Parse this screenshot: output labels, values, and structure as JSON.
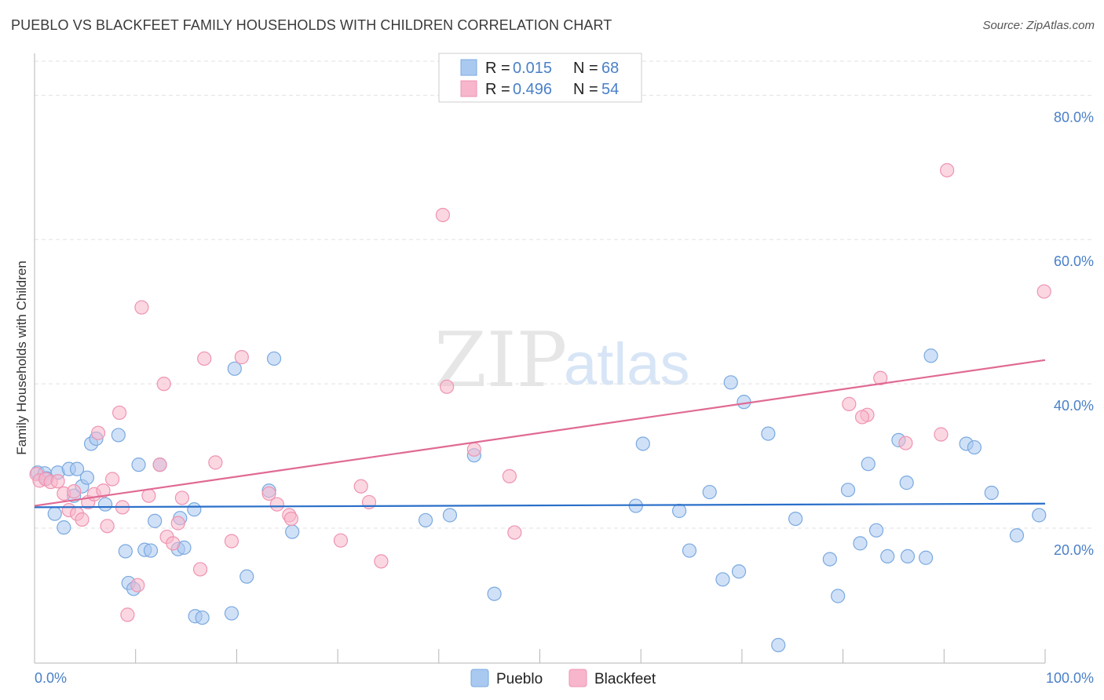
{
  "title": "PUEBLO VS BLACKFEET FAMILY HOUSEHOLDS WITH CHILDREN CORRELATION CHART",
  "source": "Source: ZipAtlas.com",
  "watermark": {
    "zip": "ZIP",
    "atlas": "atlas"
  },
  "legend": {
    "rows": [
      {
        "r_label": "R =",
        "r_value": "0.015",
        "n_label": "N =",
        "n_value": "68"
      },
      {
        "r_label": "R =",
        "r_value": "0.496",
        "n_label": "N =",
        "n_value": "54"
      }
    ]
  },
  "bottom_legend": {
    "pueblo": "Pueblo",
    "blackfeet": "Blackfeet"
  },
  "colors": {
    "pueblo_fill": "#a9c9f0",
    "pueblo_stroke": "#7aa9e0",
    "pueblo_line": "#2a6fc9",
    "blackfeet_fill": "#f7b6cb",
    "blackfeet_stroke": "#ef93b1",
    "blackfeet_line": "#e06a94",
    "tick_text": "#4a80c8"
  },
  "chart_data": {
    "type": "scatter",
    "title": "PUEBLO VS BLACKFEET FAMILY HOUSEHOLDS WITH CHILDREN CORRELATION CHART",
    "xlabel": "",
    "ylabel": "Family Households with Children",
    "xlim": [
      0,
      100
    ],
    "ylim": [
      1.3,
      85.8
    ],
    "x_tick_labels": [
      "0.0%",
      "100.0%"
    ],
    "y_ticks": [
      20,
      40,
      60,
      80
    ],
    "y_tick_labels": [
      "20.0%",
      "40.0%",
      "60.0%",
      "80.0%"
    ],
    "grid": true,
    "series": [
      {
        "name": "Pueblo",
        "R": 0.015,
        "N": 68,
        "trend": [
          [
            0,
            22.9
          ],
          [
            100,
            23.4
          ]
        ],
        "points": [
          [
            0.3,
            27.7
          ],
          [
            1.0,
            27.6
          ],
          [
            1.2,
            26.9
          ],
          [
            2.0,
            22.0
          ],
          [
            2.3,
            27.7
          ],
          [
            2.9,
            20.1
          ],
          [
            3.4,
            28.2
          ],
          [
            3.9,
            24.5
          ],
          [
            4.2,
            28.2
          ],
          [
            4.7,
            25.8
          ],
          [
            5.2,
            27.0
          ],
          [
            5.6,
            31.7
          ],
          [
            6.1,
            32.4
          ],
          [
            7.0,
            23.3
          ],
          [
            8.3,
            32.9
          ],
          [
            9.0,
            16.8
          ],
          [
            9.3,
            12.4
          ],
          [
            9.8,
            11.6
          ],
          [
            10.3,
            28.8
          ],
          [
            10.9,
            17.0
          ],
          [
            11.5,
            16.9
          ],
          [
            11.9,
            21.0
          ],
          [
            12.4,
            28.8
          ],
          [
            14.2,
            17.1
          ],
          [
            14.4,
            21.4
          ],
          [
            14.8,
            17.3
          ],
          [
            15.8,
            22.6
          ],
          [
            15.9,
            7.8
          ],
          [
            16.6,
            7.6
          ],
          [
            19.5,
            8.2
          ],
          [
            19.8,
            42.1
          ],
          [
            21.0,
            13.3
          ],
          [
            23.2,
            25.2
          ],
          [
            23.7,
            43.5
          ],
          [
            25.5,
            19.5
          ],
          [
            38.7,
            21.1
          ],
          [
            41.1,
            21.8
          ],
          [
            43.5,
            30.1
          ],
          [
            45.5,
            10.9
          ],
          [
            59.5,
            23.1
          ],
          [
            60.2,
            31.7
          ],
          [
            63.8,
            22.4
          ],
          [
            64.8,
            16.9
          ],
          [
            66.8,
            25.0
          ],
          [
            68.1,
            12.9
          ],
          [
            68.9,
            40.2
          ],
          [
            69.7,
            14.0
          ],
          [
            70.2,
            37.5
          ],
          [
            72.6,
            33.1
          ],
          [
            75.3,
            21.3
          ],
          [
            73.6,
            3.8
          ],
          [
            78.7,
            15.7
          ],
          [
            79.5,
            10.6
          ],
          [
            80.5,
            25.3
          ],
          [
            81.7,
            17.9
          ],
          [
            82.5,
            28.9
          ],
          [
            83.3,
            19.7
          ],
          [
            84.4,
            16.1
          ],
          [
            85.5,
            32.2
          ],
          [
            86.3,
            26.3
          ],
          [
            86.4,
            16.1
          ],
          [
            88.2,
            15.9
          ],
          [
            88.7,
            43.9
          ],
          [
            92.2,
            31.7
          ],
          [
            93.0,
            31.2
          ],
          [
            94.7,
            24.9
          ],
          [
            97.2,
            19.0
          ],
          [
            99.4,
            21.8
          ]
        ]
      },
      {
        "name": "Blackfeet",
        "R": 0.496,
        "N": 54,
        "trend": [
          [
            0,
            23.1
          ],
          [
            100,
            43.3
          ]
        ],
        "points": [
          [
            0.2,
            27.5
          ],
          [
            0.5,
            26.6
          ],
          [
            1.1,
            26.8
          ],
          [
            1.6,
            26.4
          ],
          [
            2.3,
            26.5
          ],
          [
            2.9,
            24.8
          ],
          [
            3.4,
            22.5
          ],
          [
            3.9,
            25.1
          ],
          [
            4.2,
            22.0
          ],
          [
            4.7,
            21.2
          ],
          [
            5.3,
            23.6
          ],
          [
            5.9,
            24.7
          ],
          [
            6.3,
            33.2
          ],
          [
            6.8,
            25.2
          ],
          [
            7.2,
            20.3
          ],
          [
            7.7,
            26.8
          ],
          [
            8.4,
            36.0
          ],
          [
            8.7,
            22.9
          ],
          [
            9.2,
            8.0
          ],
          [
            10.2,
            12.1
          ],
          [
            10.6,
            50.6
          ],
          [
            11.3,
            24.5
          ],
          [
            12.4,
            28.8
          ],
          [
            12.8,
            40.0
          ],
          [
            13.1,
            18.8
          ],
          [
            13.7,
            17.9
          ],
          [
            14.2,
            20.7
          ],
          [
            14.6,
            24.2
          ],
          [
            16.4,
            14.3
          ],
          [
            16.8,
            43.5
          ],
          [
            17.9,
            29.1
          ],
          [
            19.5,
            18.2
          ],
          [
            20.5,
            43.7
          ],
          [
            23.2,
            24.8
          ],
          [
            24.0,
            23.3
          ],
          [
            25.2,
            21.8
          ],
          [
            25.4,
            21.3
          ],
          [
            30.3,
            18.3
          ],
          [
            32.3,
            25.8
          ],
          [
            33.1,
            23.6
          ],
          [
            34.3,
            15.4
          ],
          [
            40.4,
            63.4
          ],
          [
            40.8,
            39.6
          ],
          [
            43.5,
            30.9
          ],
          [
            47.0,
            27.2
          ],
          [
            47.5,
            19.4
          ],
          [
            83.7,
            40.8
          ],
          [
            82.4,
            35.7
          ],
          [
            81.9,
            35.4
          ],
          [
            80.6,
            37.2
          ],
          [
            86.2,
            31.8
          ],
          [
            89.7,
            33.0
          ],
          [
            90.3,
            69.6
          ],
          [
            99.9,
            52.8
          ]
        ]
      }
    ]
  }
}
